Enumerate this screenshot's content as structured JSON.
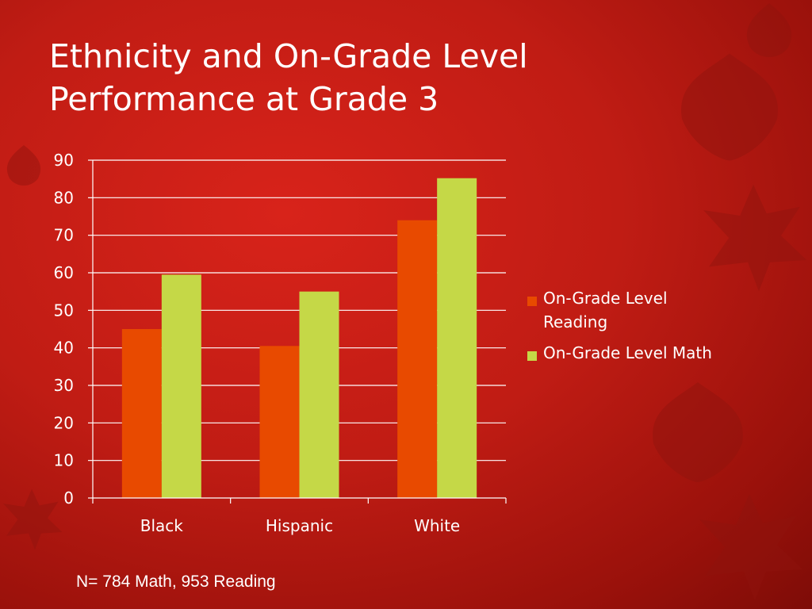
{
  "slide": {
    "title_line1": "Ethnicity and On-Grade Level",
    "title_line2": "Performance at Grade 3",
    "footnote": "N= 784 Math, 953 Reading"
  },
  "colors": {
    "background": "#c01c14",
    "reading": "#e84a00",
    "math": "#c5d847",
    "gridline": "#ffffff",
    "text": "#ffffff"
  },
  "chart_data": {
    "type": "bar",
    "title": "",
    "xlabel": "",
    "ylabel": "",
    "categories": [
      "Black",
      "Hispanic",
      "White"
    ],
    "series": [
      {
        "name": "On-Grade Level Reading",
        "values": [
          45,
          40.5,
          74
        ],
        "color": "#e84a00"
      },
      {
        "name": "On-Grade Level Math",
        "values": [
          59.5,
          55,
          85.2
        ],
        "color": "#c5d847"
      }
    ],
    "ylim": [
      0,
      90
    ],
    "yticks": [
      0,
      10,
      20,
      30,
      40,
      50,
      60,
      70,
      80,
      90
    ],
    "grid": true,
    "legend_position": "right"
  }
}
